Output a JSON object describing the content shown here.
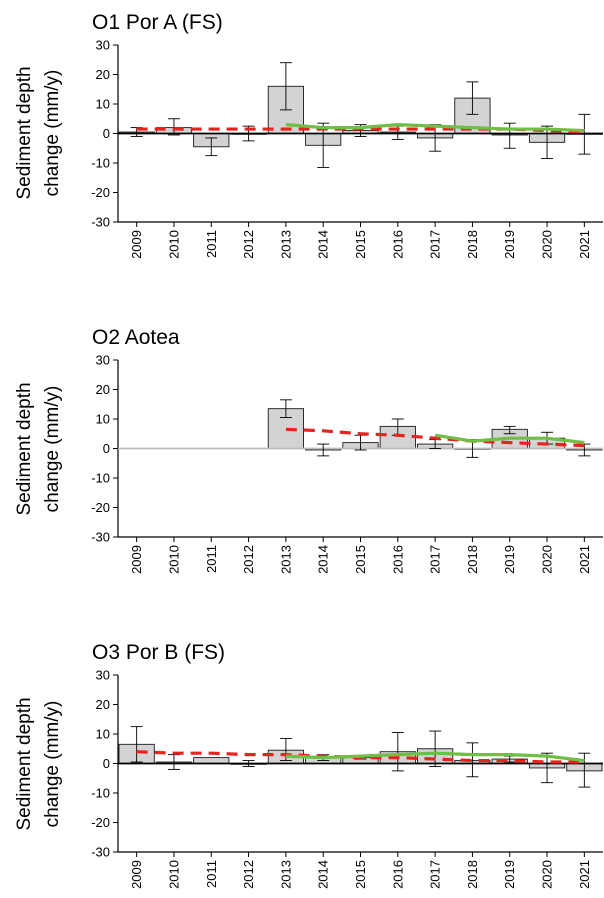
{
  "chart_data": [
    {
      "type": "bar",
      "title": "O1 Por A (FS)",
      "ylabel_line1": "Sediment depth",
      "ylabel_line2": "change (mm/y)",
      "xlabel": "",
      "ylim": [
        -30,
        30
      ],
      "yticks": [
        "30",
        "20",
        "10",
        "0",
        "-10",
        "-20",
        "-30"
      ],
      "categories": [
        "2009",
        "2010",
        "2011",
        "2012",
        "2013",
        "2014",
        "2015",
        "2016",
        "2017",
        "2018",
        "2019",
        "2020",
        "2021"
      ],
      "bars": [
        {
          "value": 0.5,
          "err_low": -1,
          "err_high": 2
        },
        {
          "value": 2,
          "err_low": -0.5,
          "err_high": 5
        },
        {
          "value": -4.5,
          "err_low": -7.5,
          "err_high": -1.5
        },
        {
          "value": 0,
          "err_low": -2.5,
          "err_high": 2.5
        },
        {
          "value": 16,
          "err_low": 8,
          "err_high": 24
        },
        {
          "value": -4,
          "err_low": -11.5,
          "err_high": 3.5
        },
        {
          "value": 1,
          "err_low": -1,
          "err_high": 3
        },
        {
          "value": 0.5,
          "err_low": -2,
          "err_high": 2.5
        },
        {
          "value": -1.5,
          "err_low": -6,
          "err_high": 3
        },
        {
          "value": 12,
          "err_low": 6.5,
          "err_high": 17.5
        },
        {
          "value": -0.5,
          "err_low": -5,
          "err_high": 3.5
        },
        {
          "value": -3,
          "err_low": -8.5,
          "err_high": 2.5
        },
        {
          "value": 0,
          "err_low": -7,
          "err_high": 6.5
        }
      ],
      "series": [
        {
          "style": "dashed",
          "color": "#e8231f",
          "x": [
            "2009",
            "2010",
            "2011",
            "2012",
            "2013",
            "2014",
            "2015",
            "2016",
            "2017",
            "2018",
            "2019",
            "2020",
            "2021"
          ],
          "values": [
            1.5,
            1.5,
            1.5,
            1.5,
            1.5,
            1.5,
            1.5,
            1.5,
            1.5,
            1.5,
            1.5,
            1,
            0.5
          ]
        },
        {
          "style": "solid",
          "color": "#6dbf45",
          "x": [
            "2013",
            "2014",
            "2015",
            "2016",
            "2017",
            "2018",
            "2019",
            "2020",
            "2021"
          ],
          "values": [
            3,
            2,
            2,
            3,
            2.5,
            2,
            1.5,
            1.5,
            1
          ]
        }
      ],
      "zero_line_color": "#000000"
    },
    {
      "type": "bar",
      "title": "O2 Aotea",
      "ylabel_line1": "Sediment depth",
      "ylabel_line2": "change (mm/y)",
      "xlabel": "",
      "ylim": [
        -30,
        30
      ],
      "yticks": [
        "30",
        "20",
        "10",
        "0",
        "-10",
        "-20",
        "-30"
      ],
      "categories": [
        "2009",
        "2010",
        "2011",
        "2012",
        "2013",
        "2014",
        "2015",
        "2016",
        "2017",
        "2018",
        "2019",
        "2020",
        "2021"
      ],
      "bars": [
        null,
        null,
        null,
        null,
        {
          "value": 13.5,
          "err_low": 10.5,
          "err_high": 16.5
        },
        {
          "value": -0.5,
          "err_low": -2.5,
          "err_high": 1.5
        },
        {
          "value": 2,
          "err_low": -0.5,
          "err_high": 4.5
        },
        {
          "value": 7.5,
          "err_low": 4.5,
          "err_high": 10
        },
        {
          "value": 1.5,
          "err_low": 0,
          "err_high": 3
        },
        {
          "value": 0,
          "err_low": -3,
          "err_high": 3
        },
        {
          "value": 6.5,
          "err_low": 5,
          "err_high": 7.5
        },
        {
          "value": 3.5,
          "err_low": 1.5,
          "err_high": 5.5
        },
        {
          "value": -0.5,
          "err_low": -2.5,
          "err_high": 1.5
        }
      ],
      "series": [
        {
          "style": "dashed",
          "color": "#e8231f",
          "x": [
            "2013",
            "2014",
            "2015",
            "2016",
            "2017",
            "2018",
            "2019",
            "2020",
            "2021"
          ],
          "values": [
            6.5,
            6,
            5,
            4.5,
            3.5,
            2.5,
            2,
            1.5,
            1
          ]
        },
        {
          "style": "solid",
          "color": "#6dbf45",
          "x": [
            "2017",
            "2018",
            "2019",
            "2020",
            "2021"
          ],
          "values": [
            4.5,
            2.5,
            3.5,
            3.5,
            2
          ]
        }
      ],
      "zero_line_color": "#bdbdbd"
    },
    {
      "type": "bar",
      "title": "O3 Por B (FS)",
      "ylabel_line1": "Sediment depth",
      "ylabel_line2": "change (mm/y)",
      "xlabel": "",
      "ylim": [
        -30,
        30
      ],
      "yticks": [
        "30",
        "20",
        "10",
        "0",
        "-10",
        "-20",
        "-30"
      ],
      "categories": [
        "2009",
        "2010",
        "2011",
        "2012",
        "2013",
        "2014",
        "2015",
        "2016",
        "2017",
        "2018",
        "2019",
        "2020",
        "2021"
      ],
      "bars": [
        {
          "value": 6.5,
          "err_low": 0.5,
          "err_high": 12.5
        },
        {
          "value": 0.5,
          "err_low": -2,
          "err_high": 3
        },
        {
          "value": 2,
          "err_low": 2,
          "err_high": 2
        },
        {
          "value": 0,
          "err_low": -1,
          "err_high": 1
        },
        {
          "value": 4.5,
          "err_low": 1,
          "err_high": 8.5
        },
        {
          "value": 2,
          "err_low": 1,
          "err_high": 3
        },
        {
          "value": 2,
          "err_low": 1.5,
          "err_high": 2.5
        },
        {
          "value": 4,
          "err_low": -2.5,
          "err_high": 10.5
        },
        {
          "value": 5,
          "err_low": -1,
          "err_high": 11
        },
        {
          "value": 1,
          "err_low": -4.5,
          "err_high": 7
        },
        {
          "value": 1.5,
          "err_low": 0.5,
          "err_high": 2.5
        },
        {
          "value": -1.5,
          "err_low": -6.5,
          "err_high": 3.5
        },
        {
          "value": -2.5,
          "err_low": -8,
          "err_high": 3.5
        }
      ],
      "series": [
        {
          "style": "dashed",
          "color": "#e8231f",
          "x": [
            "2009",
            "2010",
            "2011",
            "2012",
            "2013",
            "2014",
            "2015",
            "2016",
            "2017",
            "2018",
            "2019",
            "2020",
            "2021"
          ],
          "values": [
            4,
            3.5,
            3.5,
            3,
            3,
            2.5,
            2,
            2,
            1.5,
            1,
            1,
            0.5,
            0.5
          ]
        },
        {
          "style": "solid",
          "color": "#6dbf45",
          "x": [
            "2013",
            "2014",
            "2015",
            "2016",
            "2017",
            "2018",
            "2019",
            "2020",
            "2021"
          ],
          "values": [
            2.5,
            2,
            2.5,
            3,
            3.5,
            3,
            3,
            2.5,
            1
          ]
        }
      ],
      "zero_line_color": "#000000"
    }
  ]
}
